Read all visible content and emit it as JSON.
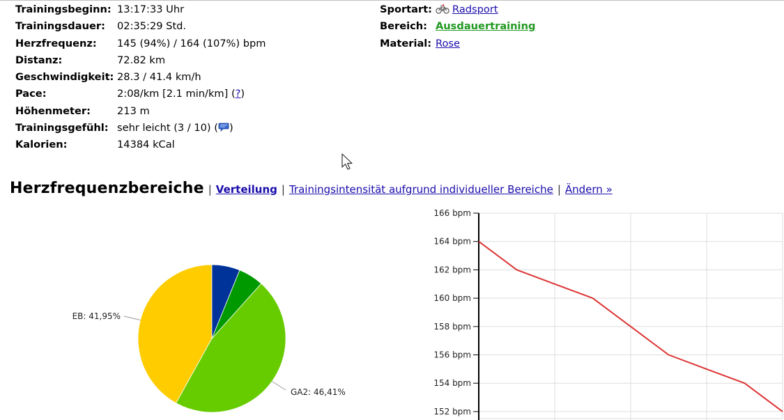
{
  "details_left": [
    {
      "label": "Trainingsbeginn:",
      "value": "13:17:33 Uhr"
    },
    {
      "label": "Trainingsdauer:",
      "value": "02:35:29 Std."
    },
    {
      "label": "Herzfrequenz:",
      "value": "145 (94%) / 164 (107%) bpm"
    },
    {
      "label": "Distanz:",
      "value": "72.82 km"
    },
    {
      "label": "Geschwindigkeit:",
      "value": "28.3 / 41.4 km/h"
    },
    {
      "label": "Pace:",
      "value": "2:08/km [2.1 min/km] (",
      "link": "?",
      "suffix": ")"
    },
    {
      "label": "Höhenmeter:",
      "value": "213 m"
    },
    {
      "label": "Trainingsgefühl:",
      "value": "sehr leicht (3 / 10) (",
      "suffix": ")"
    },
    {
      "label": "Kalorien:",
      "value": "14384 kCal"
    }
  ],
  "details_right": {
    "sportart": {
      "label": "Sportart:",
      "value": "Radsport",
      "icon": "bicycle-icon"
    },
    "bereich": {
      "label": "Bereich:",
      "value": "Ausdauertraining",
      "color": "#229922"
    },
    "material": {
      "label": "Material:",
      "value": "Rose"
    }
  },
  "section": {
    "title": "Herzfrequenzbereiche",
    "sep": "|",
    "links": [
      "Verteilung",
      "Trainingsintensität aufgrund individueller Bereiche",
      "Ändern »"
    ]
  },
  "chart_data": [
    {
      "type": "pie",
      "slices": [
        {
          "name": "EB",
          "value": 41.95,
          "color": "#ffcc00",
          "label": "EB: 41,95%"
        },
        {
          "name": "GA2",
          "value": 46.41,
          "color": "#66cc00",
          "label": "GA2: 46,41%"
        },
        {
          "name": "",
          "value": 5.5,
          "color": "#009900"
        },
        {
          "name": "",
          "value": 6.14,
          "color": "#003399"
        }
      ]
    },
    {
      "type": "line",
      "x": [
        0,
        1,
        2,
        3,
        4,
        5,
        6,
        7,
        8
      ],
      "series": [
        {
          "values": [
            164,
            162,
            161,
            160,
            158,
            156,
            155,
            154,
            152
          ],
          "color": "#dd3333"
        }
      ],
      "ylim": [
        152,
        166
      ],
      "yticks": [
        152,
        154,
        156,
        158,
        160,
        162,
        164,
        166
      ],
      "ytick_labels": [
        "152 bpm",
        "154 bpm",
        "156 bpm",
        "158 bpm",
        "160 bpm",
        "162 bpm",
        "164 bpm",
        "166 bpm"
      ],
      "grid": true
    }
  ]
}
